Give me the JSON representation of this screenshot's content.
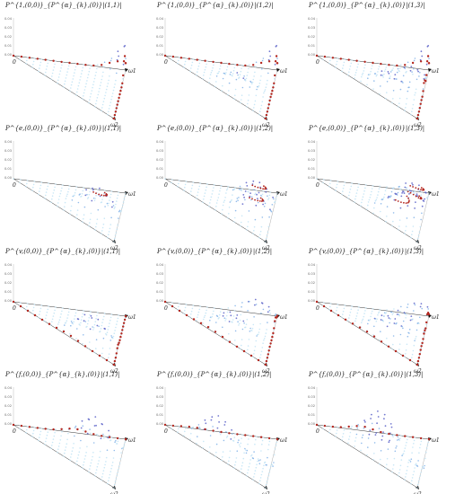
{
  "axes": {
    "y_ticks": [
      "0.04",
      "0.03",
      "0.02",
      "0.01",
      "0.00"
    ],
    "origin": "0",
    "omega1": "ω1",
    "omega2": "ω2"
  },
  "rows": [
    {
      "style": "a",
      "panels": [
        {
          "label": "P^{1,(0,0)}_{P^{α}_{k},(0)}|(1,1)|",
          "bumps": [
            [
              0.95,
              0.15,
              1.0
            ]
          ]
        },
        {
          "label": "P^{1,(0,0)}_{P^{α}_{k},(0)}|(1,2)|",
          "bumps": [
            [
              0.95,
              0.15,
              1.0
            ],
            [
              0.25,
              0.45,
              0.35
            ]
          ]
        },
        {
          "label": "P^{1,(0,0)}_{P^{α}_{k},(0)}|(1,3)|",
          "bumps": [
            [
              0.95,
              0.15,
              1.0
            ],
            [
              0.55,
              0.35,
              0.45
            ],
            [
              0.2,
              0.5,
              0.45
            ]
          ]
        }
      ]
    },
    {
      "style": "b",
      "panels": [
        {
          "label": "P^{e,(0,0)}_{P^{α}_{k},(0)}|(1,1)|",
          "bumps": [
            [
              0.35,
              0.45,
              0.6
            ]
          ]
        },
        {
          "label": "P^{e,(0,0)}_{P^{α}_{k},(0)}|(1,2)|",
          "bumps": [
            [
              0.55,
              0.3,
              0.6
            ],
            [
              0.3,
              0.55,
              0.6
            ]
          ]
        },
        {
          "label": "P^{e,(0,0)}_{P^{α}_{k},(0)}|(1,3)|",
          "bumps": [
            [
              0.65,
              0.25,
              0.5
            ],
            [
              0.45,
              0.45,
              0.5
            ],
            [
              0.25,
              0.55,
              0.5
            ]
          ]
        }
      ]
    },
    {
      "style": "c",
      "panels": [
        {
          "label": "P^{v,(0,0)}_{P^{α}_{k},(0)}|(1,1)|",
          "bumps": [
            [
              0.2,
              0.55,
              0.6
            ]
          ]
        },
        {
          "label": "P^{v,(0,0)}_{P^{α}_{k},(0)}|(1,2)|",
          "bumps": [
            [
              0.75,
              0.1,
              0.45
            ],
            [
              0.2,
              0.45,
              0.5
            ]
          ]
        },
        {
          "label": "P^{v,(0,0)}_{P^{α}_{k},(0)}|(1,3)|",
          "bumps": [
            [
              0.85,
              0.1,
              0.4
            ],
            [
              0.5,
              0.3,
              0.4
            ],
            [
              0.2,
              0.5,
              0.5
            ]
          ]
        }
      ]
    },
    {
      "style": "d",
      "panels": [
        {
          "label": "P^{f,(0,0)}_{P^{α}_{k},(0)}|(1,1)|",
          "bumps": [
            [
              0.55,
              0.2,
              0.7
            ]
          ]
        },
        {
          "label": "P^{f,(0,0)}_{P^{α}_{k},(0)}|(1,2)|",
          "bumps": [
            [
              0.25,
              0.25,
              0.7
            ],
            [
              0.6,
              0.3,
              -0.3
            ]
          ]
        },
        {
          "label": "P^{f,(0,0)}_{P^{α}_{k},(0)}|(1,3)|",
          "bumps": [
            [
              0.4,
              0.2,
              0.8
            ],
            [
              0.2,
              0.4,
              0.4
            ],
            [
              0.55,
              0.35,
              -0.3
            ]
          ]
        }
      ]
    }
  ]
}
